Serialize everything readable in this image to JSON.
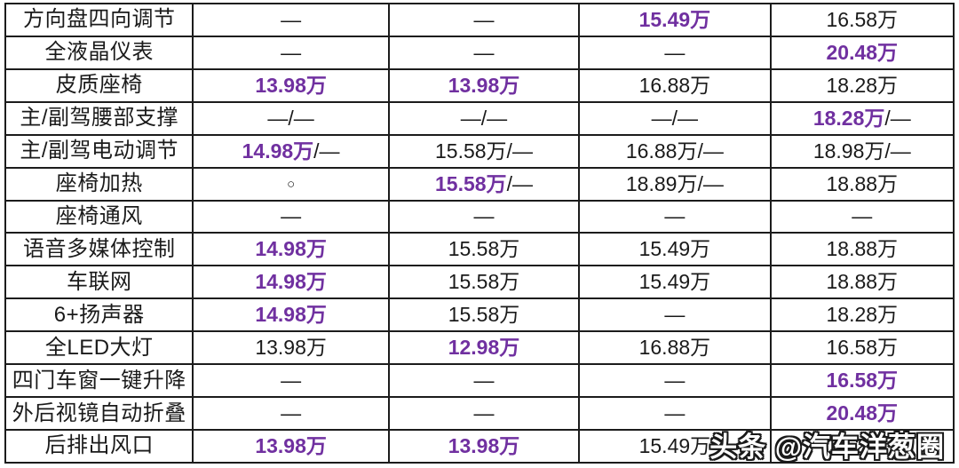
{
  "colors": {
    "highlight": "#7030A0",
    "text": "#1a1a1a",
    "border": "#1c1c1c",
    "background": "#ffffff",
    "watermark_fill": "#ffffff",
    "watermark_outline": "#1a1a1a"
  },
  "watermark": {
    "text": "头条 @汽车洋葱圈"
  },
  "chart_data": {
    "type": "table",
    "has_header": false,
    "columns": 5,
    "legend": "first column = feature name; other 4 columns = lowest trim price at which feature appears; purple bold = highlighted lowest price; — = not available; ○ = optional",
    "rows": [
      {
        "feature": "方向盘四向调节",
        "cells": [
          [
            {
              "text": "—",
              "highlight": false
            }
          ],
          [
            {
              "text": "—",
              "highlight": false
            }
          ],
          [
            {
              "text": "15.49万",
              "highlight": true
            }
          ],
          [
            {
              "text": "16.58万",
              "highlight": false
            }
          ]
        ]
      },
      {
        "feature": "全液晶仪表",
        "cells": [
          [
            {
              "text": "—",
              "highlight": false
            }
          ],
          [
            {
              "text": "—",
              "highlight": false
            }
          ],
          [
            {
              "text": "—",
              "highlight": false
            }
          ],
          [
            {
              "text": "20.48万",
              "highlight": true
            }
          ]
        ]
      },
      {
        "feature": "皮质座椅",
        "cells": [
          [
            {
              "text": "13.98万",
              "highlight": true
            }
          ],
          [
            {
              "text": "13.98万",
              "highlight": true
            }
          ],
          [
            {
              "text": "16.88万",
              "highlight": false
            }
          ],
          [
            {
              "text": "18.28万",
              "highlight": false
            }
          ]
        ]
      },
      {
        "feature": "主/副驾腰部支撑",
        "cells": [
          [
            {
              "text": "—/—",
              "highlight": false
            }
          ],
          [
            {
              "text": "—/—",
              "highlight": false
            }
          ],
          [
            {
              "text": "—/—",
              "highlight": false
            }
          ],
          [
            {
              "text": "18.28万",
              "highlight": true
            },
            {
              "text": "/—",
              "highlight": false
            }
          ]
        ]
      },
      {
        "feature": "主/副驾电动调节",
        "cells": [
          [
            {
              "text": "14.98万",
              "highlight": true
            },
            {
              "text": "/—",
              "highlight": false
            }
          ],
          [
            {
              "text": "15.58万/—",
              "highlight": false
            }
          ],
          [
            {
              "text": "16.88万/—",
              "highlight": false
            }
          ],
          [
            {
              "text": "18.98万/—",
              "highlight": false
            }
          ]
        ]
      },
      {
        "feature": "座椅加热",
        "cells": [
          [
            {
              "text": "○",
              "highlight": false
            }
          ],
          [
            {
              "text": "15.58万",
              "highlight": true
            },
            {
              "text": "/—",
              "highlight": false
            }
          ],
          [
            {
              "text": "18.89万/—",
              "highlight": false
            }
          ],
          [
            {
              "text": "18.88万",
              "highlight": false
            }
          ]
        ]
      },
      {
        "feature": "座椅通风",
        "cells": [
          [
            {
              "text": "—",
              "highlight": false
            }
          ],
          [
            {
              "text": "—",
              "highlight": false
            }
          ],
          [
            {
              "text": "—",
              "highlight": false
            }
          ],
          [
            {
              "text": "—",
              "highlight": false
            }
          ]
        ]
      },
      {
        "feature": "语音多媒体控制",
        "cells": [
          [
            {
              "text": "14.98万",
              "highlight": true
            }
          ],
          [
            {
              "text": "15.58万",
              "highlight": false
            }
          ],
          [
            {
              "text": "15.49万",
              "highlight": false
            }
          ],
          [
            {
              "text": "18.88万",
              "highlight": false
            }
          ]
        ]
      },
      {
        "feature": "车联网",
        "cells": [
          [
            {
              "text": "14.98万",
              "highlight": true
            }
          ],
          [
            {
              "text": "15.58万",
              "highlight": false
            }
          ],
          [
            {
              "text": "15.49万",
              "highlight": false
            }
          ],
          [
            {
              "text": "18.88万",
              "highlight": false
            }
          ]
        ]
      },
      {
        "feature": "6+扬声器",
        "cells": [
          [
            {
              "text": "14.98万",
              "highlight": true
            }
          ],
          [
            {
              "text": "15.58万",
              "highlight": false
            }
          ],
          [
            {
              "text": "—",
              "highlight": false
            }
          ],
          [
            {
              "text": "18.28万",
              "highlight": false
            }
          ]
        ]
      },
      {
        "feature": "全LED大灯",
        "cells": [
          [
            {
              "text": "13.98万",
              "highlight": false
            }
          ],
          [
            {
              "text": "12.98万",
              "highlight": true
            }
          ],
          [
            {
              "text": "16.88万",
              "highlight": false
            }
          ],
          [
            {
              "text": "16.58万",
              "highlight": false
            }
          ]
        ]
      },
      {
        "feature": "四门车窗一键升降",
        "cells": [
          [
            {
              "text": "—",
              "highlight": false
            }
          ],
          [
            {
              "text": "—",
              "highlight": false
            }
          ],
          [
            {
              "text": "—",
              "highlight": false
            }
          ],
          [
            {
              "text": "16.58万",
              "highlight": true
            }
          ]
        ]
      },
      {
        "feature": "外后视镜自动折叠",
        "cells": [
          [
            {
              "text": "—",
              "highlight": false
            }
          ],
          [
            {
              "text": "—",
              "highlight": false
            }
          ],
          [
            {
              "text": "—",
              "highlight": false
            }
          ],
          [
            {
              "text": "20.48万",
              "highlight": true
            }
          ]
        ]
      },
      {
        "feature": "后排出风口",
        "cells": [
          [
            {
              "text": "13.98万",
              "highlight": true
            }
          ],
          [
            {
              "text": "13.98万",
              "highlight": true
            }
          ],
          [
            {
              "text": "15.49万",
              "highlight": false
            }
          ],
          [
            {
              "text": "18.28万",
              "highlight": false
            }
          ]
        ]
      }
    ]
  }
}
